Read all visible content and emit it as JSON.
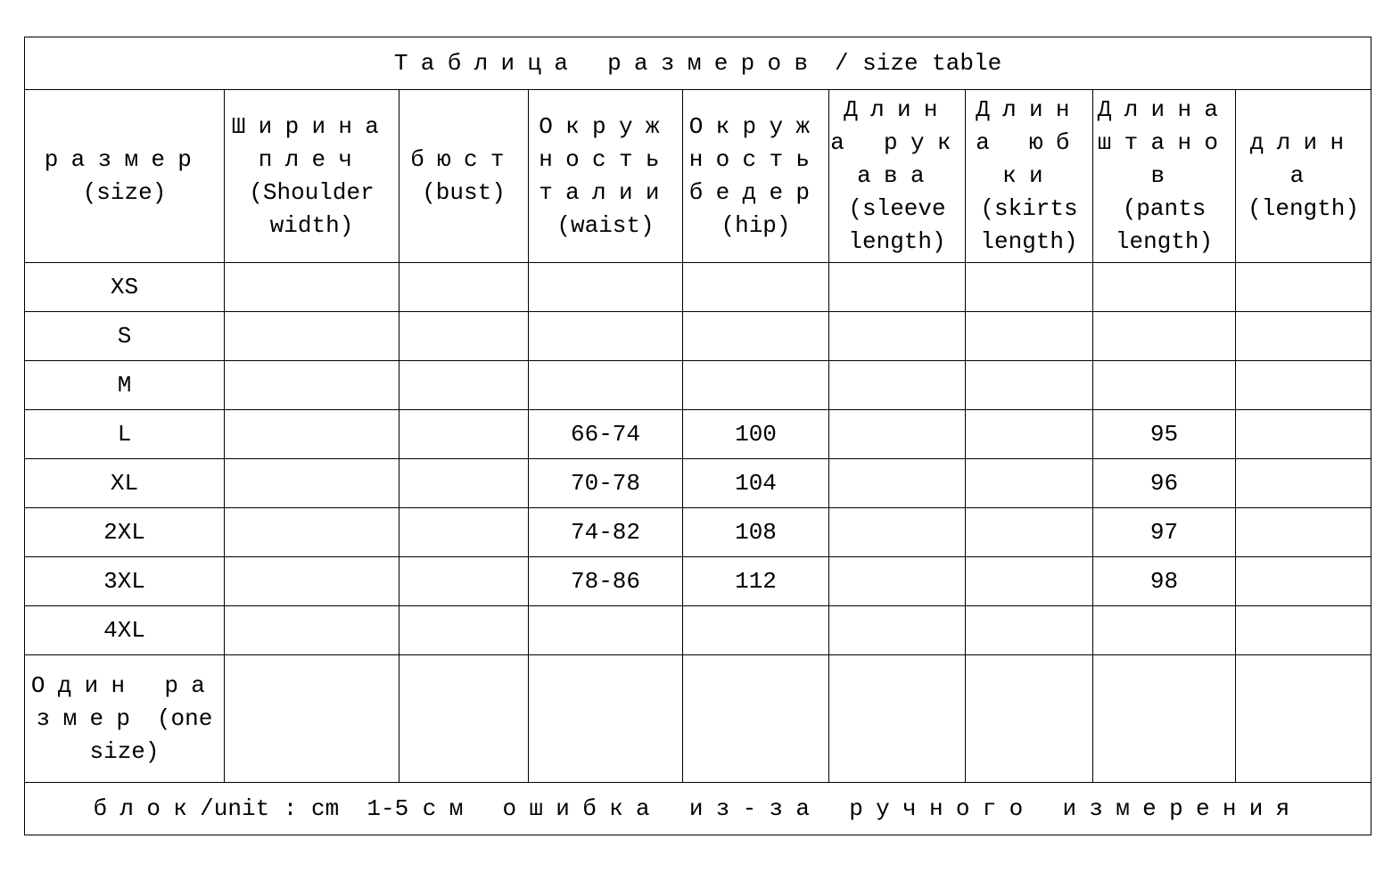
{
  "title": {
    "cyr": "Таблица размеров",
    "rest": " / size table"
  },
  "headers": [
    [
      {
        "t": "размер",
        "c": 1
      },
      {
        "t": "(size)",
        "c": 0
      }
    ],
    [
      {
        "t": "Ширина",
        "c": 1
      },
      {
        "t": "плеч",
        "c": 1
      },
      {
        "t": "(Shoulder",
        "c": 0
      },
      {
        "t": "width)",
        "c": 0
      }
    ],
    [
      {
        "t": "бюст",
        "c": 1
      },
      {
        "t": "(bust)",
        "c": 0
      }
    ],
    [
      {
        "t": "Окруж",
        "c": 1
      },
      {
        "t": "ность",
        "c": 1
      },
      {
        "t": "талии",
        "c": 1
      },
      {
        "t": "(waist)",
        "c": 0
      }
    ],
    [
      {
        "t": "Окруж",
        "c": 1
      },
      {
        "t": "ность",
        "c": 1
      },
      {
        "t": "бедер",
        "c": 1
      },
      {
        "t": "(hip)",
        "c": 0
      }
    ],
    [
      {
        "t": "Длин",
        "c": 1
      },
      {
        "t": "а рук",
        "c": 1
      },
      {
        "t": "ава",
        "c": 1
      },
      {
        "t": "(sleeve",
        "c": 0
      },
      {
        "t": "length)",
        "c": 0
      }
    ],
    [
      {
        "t": "Длин",
        "c": 1
      },
      {
        "t": "а юб",
        "c": 1
      },
      {
        "t": "ки",
        "c": 1
      },
      {
        "t": "(skirts",
        "c": 0
      },
      {
        "t": "length)",
        "c": 0
      }
    ],
    [
      {
        "t": "Длина",
        "c": 1
      },
      {
        "t": "штано",
        "c": 1
      },
      {
        "t": "в",
        "c": 1
      },
      {
        "t": "(pants",
        "c": 0
      },
      {
        "t": "length)",
        "c": 0
      }
    ],
    [
      {
        "t": "длин",
        "c": 1
      },
      {
        "t": "а",
        "c": 1
      },
      {
        "t": "(length)",
        "c": 0
      }
    ]
  ],
  "rows": [
    [
      "XS",
      "",
      "",
      "",
      "",
      "",
      "",
      "",
      ""
    ],
    [
      "S",
      "",
      "",
      "",
      "",
      "",
      "",
      "",
      ""
    ],
    [
      "M",
      "",
      "",
      "",
      "",
      "",
      "",
      "",
      ""
    ],
    [
      "L",
      "",
      "",
      "66-74",
      "100",
      "",
      "",
      "95",
      ""
    ],
    [
      "XL",
      "",
      "",
      "70-78",
      "104",
      "",
      "",
      "96",
      ""
    ],
    [
      "2XL",
      "",
      "",
      "74-82",
      "108",
      "",
      "",
      "97",
      ""
    ],
    [
      "3XL",
      "",
      "",
      "78-86",
      "112",
      "",
      "",
      "98",
      ""
    ],
    [
      "4XL",
      "",
      "",
      "",
      "",
      "",
      "",
      "",
      ""
    ]
  ],
  "one_size": [
    {
      "t": "Один ра",
      "c": 1
    },
    {
      "t": "змер (one",
      "c": 2
    },
    {
      "t": "size)",
      "c": 0
    }
  ],
  "footer": {
    "a": "блок",
    "b": "/unit : cm  1-5 ",
    "c": "см ошибка из-за ручного измерения"
  }
}
